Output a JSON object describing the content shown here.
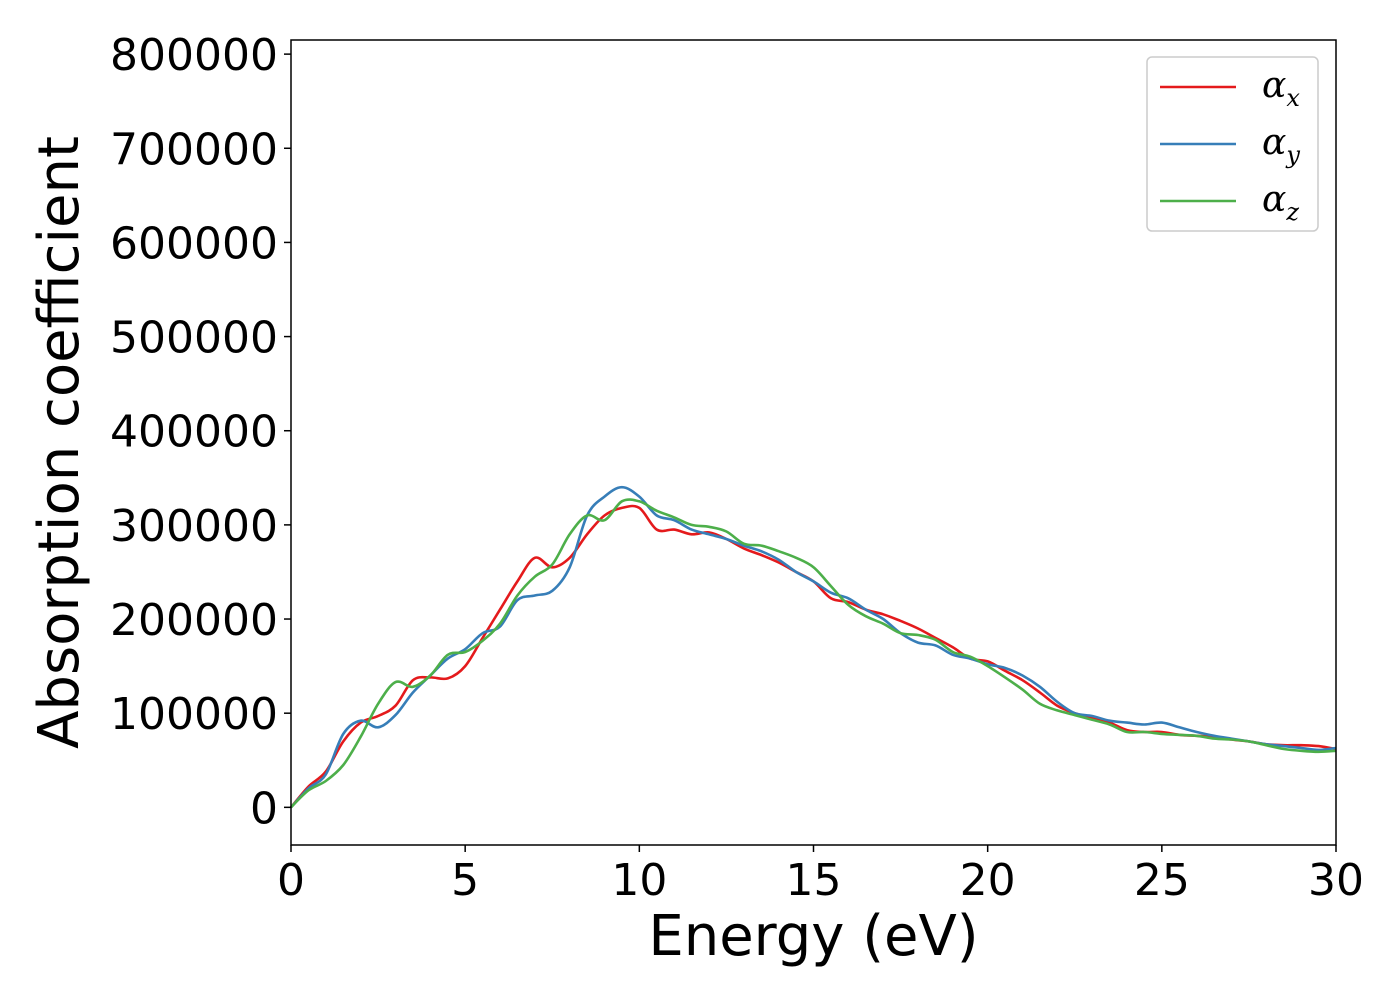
{
  "chart_data": {
    "type": "line",
    "title": "",
    "xlabel": "Energy (eV)",
    "ylabel": "Absorption coefficient",
    "xlim": [
      0,
      30
    ],
    "ylim": [
      -40000,
      815000
    ],
    "x_ticks": [
      0,
      5,
      10,
      15,
      20,
      25,
      30
    ],
    "y_ticks": [
      0,
      100000,
      200000,
      300000,
      400000,
      500000,
      600000,
      700000,
      800000
    ],
    "grid": false,
    "legend_position": "top-right",
    "series": [
      {
        "name": "α",
        "subscript": "x",
        "color": "#e41a1c",
        "x": [
          0,
          0.5,
          1,
          1.5,
          2,
          2.5,
          3,
          3.5,
          4,
          4.5,
          5,
          5.5,
          6,
          6.5,
          7,
          7.5,
          8,
          8.5,
          9,
          9.5,
          10,
          10.5,
          11,
          11.5,
          12,
          12.5,
          13,
          13.5,
          14,
          14.5,
          15,
          15.5,
          16,
          16.5,
          17,
          17.5,
          18,
          18.5,
          19,
          19.5,
          20,
          20.5,
          21,
          21.5,
          22,
          22.5,
          23,
          23.5,
          24,
          24.5,
          25,
          25.5,
          26,
          26.5,
          27,
          27.5,
          28,
          28.5,
          29,
          29.5,
          30
        ],
        "y": [
          0,
          22000,
          38000,
          70000,
          90000,
          97000,
          108000,
          135000,
          138000,
          137000,
          150000,
          180000,
          210000,
          240000,
          265000,
          255000,
          265000,
          290000,
          310000,
          318000,
          318000,
          295000,
          295000,
          290000,
          292000,
          285000,
          275000,
          268000,
          260000,
          250000,
          240000,
          222000,
          218000,
          210000,
          205000,
          198000,
          190000,
          180000,
          170000,
          158000,
          155000,
          145000,
          135000,
          122000,
          108000,
          100000,
          95000,
          90000,
          82000,
          80000,
          80000,
          77000,
          76000,
          75000,
          72000,
          70000,
          67000,
          66000,
          66000,
          65000,
          62000
        ]
      },
      {
        "name": "α",
        "subscript": "y",
        "color": "#377eb8",
        "x": [
          0,
          0.5,
          1,
          1.5,
          2,
          2.5,
          3,
          3.5,
          4,
          4.5,
          5,
          5.5,
          6,
          6.5,
          7,
          7.5,
          8,
          8.5,
          9,
          9.5,
          10,
          10.5,
          11,
          11.5,
          12,
          12.5,
          13,
          13.5,
          14,
          14.5,
          15,
          15.5,
          16,
          16.5,
          17,
          17.5,
          18,
          18.5,
          19,
          19.5,
          20,
          20.5,
          21,
          21.5,
          22,
          22.5,
          23,
          23.5,
          24,
          24.5,
          25,
          25.5,
          26,
          26.5,
          27,
          27.5,
          28,
          28.5,
          29,
          29.5,
          30
        ],
        "y": [
          0,
          20000,
          35000,
          78000,
          92000,
          85000,
          98000,
          122000,
          140000,
          158000,
          168000,
          185000,
          192000,
          220000,
          225000,
          230000,
          255000,
          310000,
          330000,
          340000,
          330000,
          310000,
          305000,
          295000,
          290000,
          285000,
          278000,
          272000,
          263000,
          250000,
          240000,
          228000,
          222000,
          210000,
          200000,
          185000,
          175000,
          172000,
          162000,
          158000,
          152000,
          148000,
          140000,
          128000,
          112000,
          100000,
          97000,
          92000,
          90000,
          88000,
          90000,
          85000,
          80000,
          76000,
          73000,
          70000,
          67000,
          65000,
          63000,
          61000,
          63000
        ]
      },
      {
        "name": "α",
        "subscript": "z",
        "color": "#4daf4a",
        "x": [
          0,
          0.5,
          1,
          1.5,
          2,
          2.5,
          3,
          3.5,
          4,
          4.5,
          5,
          5.5,
          6,
          6.5,
          7,
          7.5,
          8,
          8.5,
          9,
          9.5,
          10,
          10.5,
          11,
          11.5,
          12,
          12.5,
          13,
          13.5,
          14,
          14.5,
          15,
          15.5,
          16,
          16.5,
          17,
          17.5,
          18,
          18.5,
          19,
          19.5,
          20,
          20.5,
          21,
          21.5,
          22,
          22.5,
          23,
          23.5,
          24,
          24.5,
          25,
          25.5,
          26,
          26.5,
          27,
          27.5,
          28,
          28.5,
          29,
          29.5,
          30
        ],
        "y": [
          0,
          18000,
          28000,
          45000,
          75000,
          110000,
          133000,
          128000,
          140000,
          162000,
          165000,
          177000,
          195000,
          225000,
          245000,
          258000,
          290000,
          310000,
          305000,
          325000,
          325000,
          315000,
          308000,
          300000,
          298000,
          293000,
          280000,
          278000,
          272000,
          265000,
          255000,
          235000,
          215000,
          203000,
          195000,
          185000,
          183000,
          178000,
          165000,
          160000,
          150000,
          138000,
          125000,
          110000,
          103000,
          98000,
          93000,
          88000,
          80000,
          80000,
          78000,
          77000,
          76000,
          73000,
          72000,
          70000,
          66000,
          62000,
          60000,
          59000,
          60000
        ]
      }
    ]
  }
}
